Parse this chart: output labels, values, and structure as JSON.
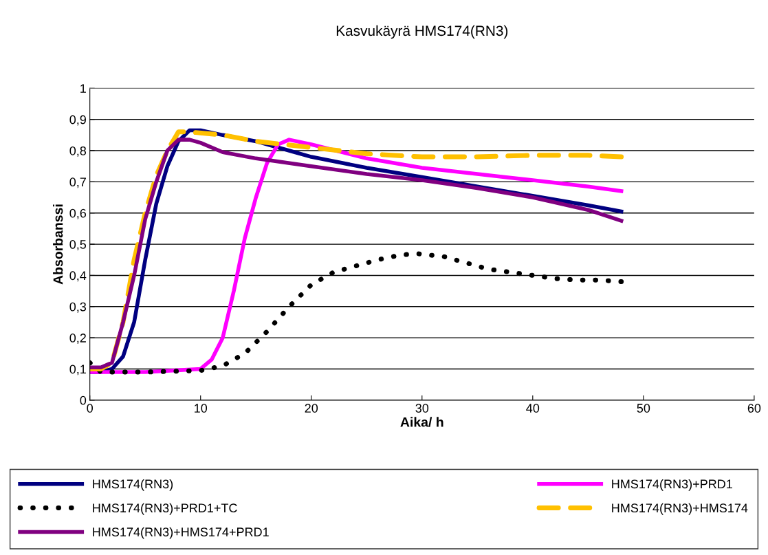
{
  "chart_data": {
    "type": "line",
    "title": "Kasvukäyrä HMS174(RN3)",
    "xlabel": "Aika/ h",
    "ylabel": "Absorbanssi",
    "xlim": [
      0,
      60
    ],
    "xticks": [
      0,
      10,
      20,
      30,
      40,
      50,
      60
    ],
    "ylim": [
      0,
      1
    ],
    "yticks": [
      0,
      {
        "value": 0.1,
        "label": "0,1"
      },
      {
        "value": 0.2,
        "label": "0,2"
      },
      {
        "value": 0.3,
        "label": "0,3"
      },
      {
        "value": 0.4,
        "label": "0,4"
      },
      {
        "value": 0.5,
        "label": "0,5"
      },
      {
        "value": 0.6,
        "label": "0,6"
      },
      {
        "value": 0.7,
        "label": "0,7"
      },
      {
        "value": 0.8,
        "label": "0,8"
      },
      {
        "value": 0.9,
        "label": "0,9"
      },
      1
    ],
    "grid": "y",
    "legend": "bottom",
    "marker": "none",
    "series": [
      {
        "name": "HMS174(RN3)",
        "color": "#000080",
        "line_style": "solid",
        "x": [
          0,
          1,
          2,
          3,
          4,
          5,
          6,
          7,
          8,
          9,
          10,
          12,
          15,
          18,
          20,
          25,
          30,
          35,
          40,
          45,
          48
        ],
        "values": [
          0.09,
          0.09,
          0.1,
          0.14,
          0.25,
          0.45,
          0.63,
          0.75,
          0.83,
          0.865,
          0.865,
          0.85,
          0.83,
          0.8,
          0.78,
          0.745,
          0.715,
          0.685,
          0.655,
          0.625,
          0.605
        ]
      },
      {
        "name": "HMS174(RN3)+PRD1",
        "color": "#ff00ff",
        "line_style": "solid",
        "x": [
          0,
          5,
          10,
          11,
          12,
          13,
          14,
          15,
          16,
          17,
          18,
          20,
          25,
          30,
          35,
          40,
          45,
          48
        ],
        "values": [
          0.09,
          0.09,
          0.1,
          0.13,
          0.2,
          0.35,
          0.52,
          0.65,
          0.76,
          0.82,
          0.835,
          0.82,
          0.775,
          0.745,
          0.725,
          0.705,
          0.685,
          0.67
        ]
      },
      {
        "name": "HMS174(RN3)+PRD1+TC",
        "color": "#000000",
        "line_style": "dotted",
        "x": [
          0,
          1,
          5,
          10,
          12,
          14,
          16,
          18,
          20,
          22,
          24,
          26,
          28,
          29.5,
          32,
          34,
          36,
          38,
          40,
          42,
          44,
          46,
          48
        ],
        "values": [
          0.12,
          0.09,
          0.09,
          0.095,
          0.11,
          0.15,
          0.22,
          0.3,
          0.37,
          0.41,
          0.43,
          0.45,
          0.465,
          0.47,
          0.46,
          0.44,
          0.42,
          0.41,
          0.4,
          0.39,
          0.385,
          0.385,
          0.38
        ]
      },
      {
        "name": "HMS174(RN3)+HMS174",
        "color": "#ffc000",
        "line_style": "dashed",
        "x": [
          0,
          1,
          2,
          3,
          4,
          5,
          6,
          7,
          8,
          9,
          12,
          15,
          20,
          25,
          30,
          35,
          40,
          45,
          48
        ],
        "values": [
          0.1,
          0.1,
          0.12,
          0.25,
          0.45,
          0.6,
          0.72,
          0.8,
          0.86,
          0.86,
          0.85,
          0.83,
          0.81,
          0.79,
          0.78,
          0.78,
          0.785,
          0.785,
          0.78
        ]
      },
      {
        "name": "HMS174(RN3)+HMS174+PRD1",
        "color": "#800080",
        "line_style": "solid",
        "x": [
          0,
          1,
          2,
          3,
          4,
          5,
          6,
          7,
          8,
          9,
          10,
          12,
          15,
          20,
          25,
          30,
          35,
          40,
          45,
          48
        ],
        "values": [
          0.105,
          0.105,
          0.12,
          0.25,
          0.4,
          0.58,
          0.7,
          0.8,
          0.835,
          0.835,
          0.825,
          0.795,
          0.775,
          0.75,
          0.725,
          0.705,
          0.68,
          0.65,
          0.61,
          0.575
        ]
      }
    ]
  }
}
